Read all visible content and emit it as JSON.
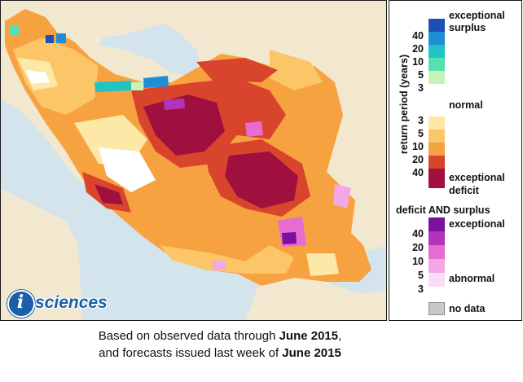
{
  "legend": {
    "axis_title": "return period (years)",
    "surplus_label_top": "exceptional",
    "surplus_label_bottom": "surplus",
    "normal_label": "normal",
    "deficit_label_top": "exceptional",
    "deficit_label_bottom": "deficit",
    "surplus_ticks": [
      "40",
      "20",
      "10",
      "5",
      "3"
    ],
    "deficit_ticks": [
      "3",
      "5",
      "10",
      "20",
      "40"
    ],
    "both_title": "deficit AND surplus",
    "both_label_top": "exceptional",
    "both_label_bottom": "abnormal",
    "both_ticks": [
      "40",
      "20",
      "10",
      "5",
      "3"
    ],
    "nodata_label": "no data",
    "colors": {
      "surplus": [
        "#1f4fb4",
        "#1e8fd6",
        "#22c3c3",
        "#58e0b4",
        "#c6f3b8"
      ],
      "normal": "#ffffff",
      "deficit": [
        "#fde8a8",
        "#fcc568",
        "#f7a240",
        "#d9452c",
        "#a0103e"
      ],
      "both": [
        "#7a0fa0",
        "#b333b8",
        "#e56cd0",
        "#f2a8e6",
        "#fbdcf4"
      ],
      "nodata": "#c8c8c8"
    }
  },
  "caption": {
    "line1_prefix": "Based on observed data through ",
    "line1_bold": "June 2015",
    "line1_suffix": ",",
    "line2_prefix": "and forecasts issued last week of ",
    "line2_bold": "June 2015"
  },
  "logo": {
    "letter": "i",
    "text": "sciences"
  }
}
